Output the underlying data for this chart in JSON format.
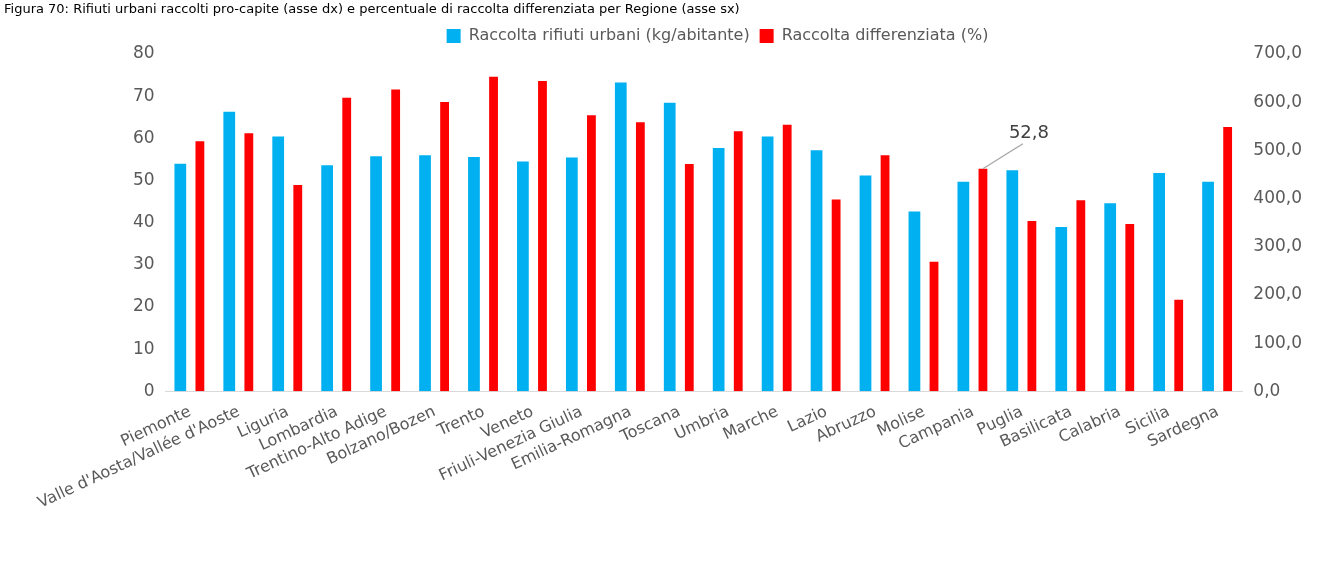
{
  "chart_data": {
    "type": "bar",
    "title": "Figura 70: Rifiuti urbani raccolti pro-capite (asse dx) e percentuale di raccolta differenziata per Regione (asse sx)",
    "categories": [
      "Piemonte",
      "Valle d'Aosta/Vallée d'Aoste",
      "Liguria",
      "Lombardia",
      "Trentino-Alto Adige",
      "Bolzano/Bozen",
      "Trento",
      "Veneto",
      "Friuli-Venezia Giulia",
      "Emilia-Romagna",
      "Toscana",
      "Umbria",
      "Marche",
      "Lazio",
      "Abruzzo",
      "Molise",
      "Campania",
      "Puglia",
      "Basilicata",
      "Calabria",
      "Sicilia",
      "Sardegna"
    ],
    "series": [
      {
        "name": "Raccolta rifiuti urbani (kg/abitante)",
        "color": "#00b0f0",
        "axis": "y2",
        "values": [
          472,
          580,
          529,
          469,
          488,
          490,
          486,
          477,
          485,
          641,
          599,
          505,
          529,
          500,
          448,
          373,
          435,
          459,
          341,
          390,
          453,
          435
        ]
      },
      {
        "name": "Raccolta differenziata (%)",
        "color": "#ff0000",
        "values": [
          59.3,
          61.2,
          48.9,
          69.6,
          71.6,
          68.6,
          74.6,
          73.6,
          65.5,
          63.8,
          53.9,
          61.7,
          63.2,
          45.5,
          56.0,
          30.7,
          52.8,
          40.4,
          45.3,
          39.7,
          21.7,
          62.7
        ],
        "value_labels": [
          null,
          null,
          null,
          null,
          null,
          null,
          null,
          null,
          null,
          null,
          null,
          null,
          null,
          null,
          null,
          null,
          "52,8",
          null,
          null,
          null,
          null,
          null
        ]
      }
    ],
    "ylim": [
      0,
      80
    ],
    "yticks": [
      0,
      10,
      20,
      30,
      40,
      50,
      60,
      70,
      80
    ],
    "y2lim": [
      0,
      700
    ],
    "y2ticks": [
      {
        "value": 0,
        "label": "0,0"
      },
      {
        "value": 100,
        "label": "100,0"
      },
      {
        "value": 200,
        "label": "200,0"
      },
      {
        "value": 300,
        "label": "300,0"
      },
      {
        "value": 400,
        "label": "400,0"
      },
      {
        "value": 500,
        "label": "500,0"
      },
      {
        "value": 600,
        "label": "600,0"
      },
      {
        "value": 700,
        "label": "700,0"
      }
    ],
    "legend": "top",
    "grid": false
  }
}
